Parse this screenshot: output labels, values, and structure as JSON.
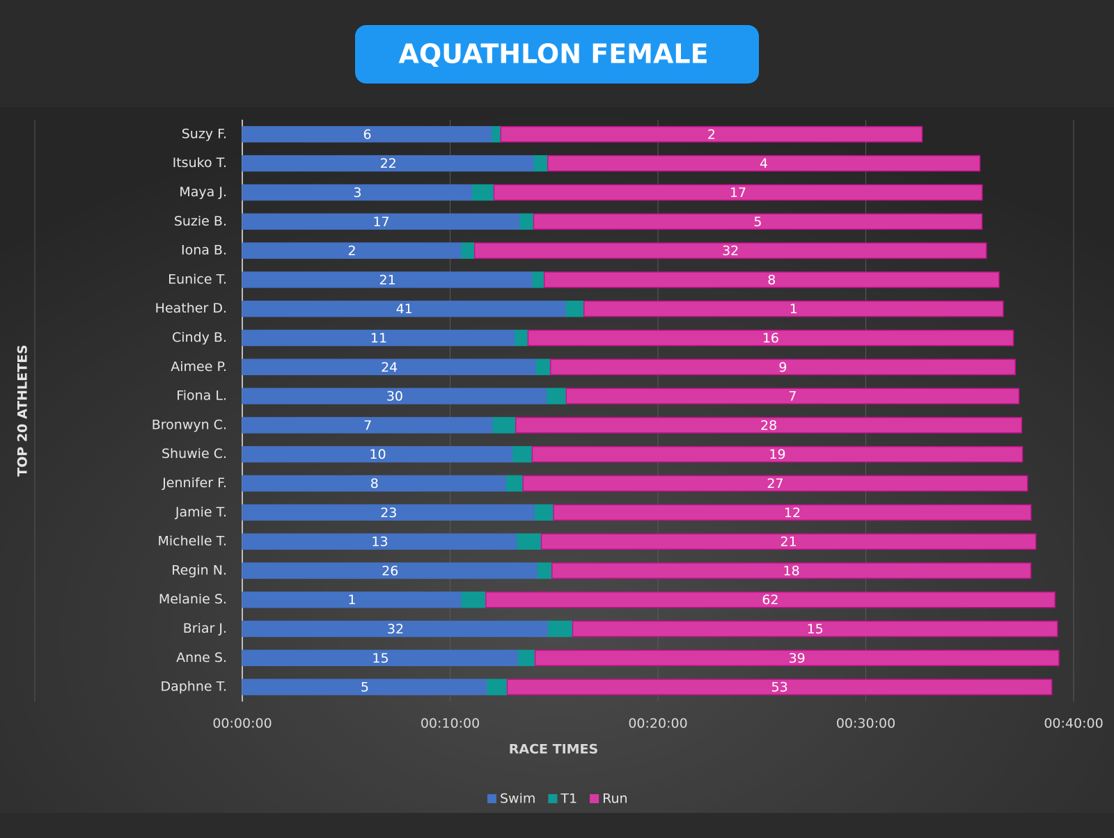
{
  "chart_data": {
    "type": "stacked-bar-horizontal",
    "title": "AQUATHLON FEMALE",
    "x_label": "RACE TIMES",
    "y_label": "TOP 20 ATHLETES",
    "categories": [
      "Suzy F.",
      "Itsuko T.",
      "Maya J.",
      "Suzie B.",
      "Iona B.",
      "Eunice T.",
      "Heather D.",
      "Cindy B.",
      "Aimee P.",
      "Fiona L.",
      "Bronwyn C.",
      "Shuwie C.",
      "Jennifer F.",
      "Jamie T.",
      "Michelle T.",
      "Regin N.",
      "Melanie S.",
      "Briar J.",
      "Anne S.",
      "Daphne T."
    ],
    "series": [
      {
        "name": "Swim",
        "color": "#4472c4",
        "border": "#4472c4",
        "values": [
          12.03,
          14.05,
          11.08,
          13.37,
          10.56,
          13.98,
          15.59,
          13.13,
          14.15,
          14.67,
          12.07,
          13.03,
          12.72,
          14.09,
          13.23,
          14.22,
          10.56,
          14.74,
          13.3,
          11.79
        ],
        "ranks": [
          6,
          22,
          3,
          17,
          2,
          21,
          41,
          11,
          24,
          30,
          7,
          10,
          8,
          23,
          13,
          26,
          1,
          32,
          15,
          5
        ]
      },
      {
        "name": "T1",
        "color": "#0f9a95",
        "border": "#0f9a95",
        "values": [
          0.41,
          0.65,
          1.03,
          0.65,
          0.62,
          0.55,
          0.85,
          0.62,
          0.68,
          0.92,
          1.09,
          0.92,
          0.79,
          0.89,
          1.16,
          0.68,
          1.16,
          1.16,
          0.79,
          0.96
        ]
      },
      {
        "name": "Run",
        "color": "#d83aa3",
        "border": "#c4128c",
        "values": [
          20.27,
          20.79,
          23.49,
          21.57,
          24.62,
          21.88,
          20.17,
          23.35,
          22.36,
          21.78,
          24.34,
          23.59,
          24.27,
          22.97,
          23.79,
          23.04,
          27.38,
          23.32,
          25.2,
          26.2
        ],
        "ranks": [
          2,
          4,
          17,
          5,
          32,
          8,
          1,
          16,
          9,
          7,
          28,
          19,
          27,
          12,
          21,
          18,
          62,
          15,
          39,
          53
        ]
      }
    ],
    "xlim": [
      0,
      40
    ],
    "xticks": [
      {
        "value": 0,
        "label": "00:00:00"
      },
      {
        "value": 10,
        "label": "00:10:00"
      },
      {
        "value": 20,
        "label": "00:20:00"
      },
      {
        "value": 30,
        "label": "00:30:00"
      },
      {
        "value": 40,
        "label": "00:40:00"
      }
    ],
    "grid": true,
    "legend": "bottom"
  }
}
